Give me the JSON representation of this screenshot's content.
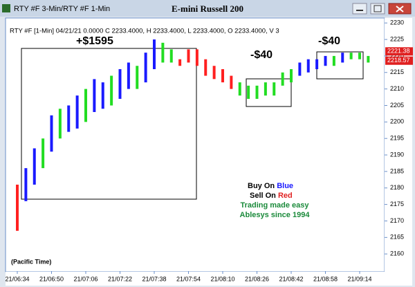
{
  "window": {
    "title": "RTY #F 3-Min/RTY #F 1-Min"
  },
  "chart_data": {
    "type": "ohlc",
    "title": "E-mini Russell 200",
    "info": "RTY #F [1-Min] 04/21/21  0.0000 C 2233.4000, H 2233.4000, L 2233.4000, O 2233.4000, V 3",
    "categories": [
      "21/06:34",
      null,
      null,
      null,
      "21/06:50",
      null,
      null,
      null,
      "21/07:06",
      null,
      null,
      null,
      "21/07:22",
      null,
      null,
      null,
      "21/07:38",
      null,
      null,
      null,
      "21/07:54",
      null,
      null,
      null,
      "21/08:10",
      null,
      null,
      null,
      "21/08:26",
      null,
      null,
      null,
      "21/08:42",
      null,
      null,
      null,
      "21/08:58",
      null,
      null,
      null,
      "21/09:14",
      null
    ],
    "high": [
      2181,
      2186,
      2192,
      2195,
      2202,
      2204,
      2205,
      2208,
      2210,
      2213,
      2212,
      2214,
      2216,
      2218,
      2217,
      2221,
      2225,
      2224,
      2222,
      2219,
      2222,
      2222,
      2219,
      2217,
      2216,
      2214,
      2212,
      2211,
      2211,
      2212,
      2212,
      2215,
      2216,
      2218,
      2219,
      2219,
      2220,
      2220,
      2221,
      2221,
      2221,
      2220
    ],
    "low": [
      2167,
      2176,
      2181,
      2186,
      2191,
      2195,
      2197,
      2198,
      2200,
      2203,
      2204,
      2205,
      2207,
      2210,
      2210,
      2212,
      2216,
      2218,
      2218,
      2217,
      2218,
      2217,
      2214,
      2213,
      2212,
      2210,
      2208,
      2207,
      2207,
      2208,
      2208,
      2211,
      2212,
      2214,
      2215,
      2216,
      2217,
      2217,
      2218,
      2219,
      2219,
      2218
    ],
    "colors": [
      "#ff2020",
      "#1a1aff",
      "#1a1aff",
      "#22dd22",
      "#1a1aff",
      "#22dd22",
      "#1a1aff",
      "#1a1aff",
      "#22dd22",
      "#1a1aff",
      "#1a1aff",
      "#22dd22",
      "#1a1aff",
      "#1a1aff",
      "#22dd22",
      "#1a1aff",
      "#1a1aff",
      "#22dd22",
      "#22dd22",
      "#ff2020",
      "#ff2020",
      "#ff2020",
      "#ff2020",
      "#ff2020",
      "#ff2020",
      "#ff2020",
      "#22dd22",
      "#22dd22",
      "#22dd22",
      "#22dd22",
      "#22dd22",
      "#22dd22",
      "#22dd22",
      "#1a1aff",
      "#1a1aff",
      "#1a1aff",
      "#1a1aff",
      "#22dd22",
      "#1a1aff",
      "#22dd22",
      "#22dd22",
      "#22dd22"
    ],
    "ylim": [
      2154.8,
      2231.3
    ],
    "yticks": [
      2160,
      2165,
      2170,
      2175,
      2180,
      2185,
      2190,
      2195,
      2200,
      2205,
      2210,
      2215,
      2220,
      2225,
      2230
    ],
    "price_tags": [
      2221.38,
      2218.57
    ],
    "tag_color": "#e02020",
    "grid": false,
    "annotations": {
      "trade1": "+$1595",
      "trade2": "-$40",
      "trade3": "-$40",
      "timezone": "(Pacific Time)"
    },
    "legend": {
      "buy": "Buy On",
      "buy_color": "Blue",
      "sell": "Sell On",
      "sell_color": "Red",
      "line3": "Trading made easy",
      "line4": "Ablesys since 1994"
    }
  }
}
